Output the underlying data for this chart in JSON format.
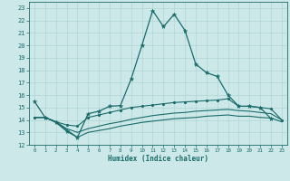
{
  "xlabel": "Humidex (Indice chaleur)",
  "x_ticks": [
    0,
    1,
    2,
    3,
    4,
    5,
    6,
    7,
    8,
    9,
    10,
    11,
    12,
    13,
    14,
    15,
    16,
    17,
    18,
    19,
    20,
    21,
    22,
    23
  ],
  "ylim": [
    12,
    23.5
  ],
  "xlim": [
    -0.5,
    23.5
  ],
  "yticks": [
    12,
    13,
    14,
    15,
    16,
    17,
    18,
    19,
    20,
    21,
    22,
    23
  ],
  "bg_color": "#cce8e8",
  "grid_color": "#b0d4d4",
  "line_color": "#1a6b6b",
  "line1_x": [
    0,
    1,
    2,
    3,
    4,
    5,
    6,
    7,
    8,
    9,
    10,
    11,
    12,
    13,
    14,
    15,
    16,
    17,
    18,
    19,
    20,
    21,
    22
  ],
  "line1_y": [
    15.5,
    14.2,
    13.8,
    13.1,
    12.6,
    14.5,
    14.7,
    15.1,
    15.15,
    17.3,
    20.0,
    22.8,
    21.5,
    22.5,
    21.2,
    18.5,
    17.8,
    17.5,
    16.0,
    15.1,
    15.1,
    15.0,
    14.1
  ],
  "line2_x": [
    0,
    1,
    2,
    3,
    4,
    5,
    6,
    7,
    8,
    9,
    10,
    11,
    12,
    13,
    14,
    15,
    16,
    17,
    18,
    19,
    20,
    21,
    22,
    23
  ],
  "line2_y": [
    14.2,
    14.2,
    13.85,
    13.6,
    13.5,
    14.2,
    14.4,
    14.6,
    14.8,
    15.0,
    15.1,
    15.2,
    15.3,
    15.4,
    15.45,
    15.5,
    15.55,
    15.6,
    15.7,
    15.1,
    15.1,
    15.0,
    14.9,
    14.0
  ],
  "line3_x": [
    0,
    1,
    2,
    3,
    4,
    5,
    6,
    7,
    8,
    9,
    10,
    11,
    12,
    13,
    14,
    15,
    16,
    17,
    18,
    19,
    20,
    21,
    22,
    23
  ],
  "line3_y": [
    14.2,
    14.2,
    13.85,
    13.3,
    13.0,
    13.3,
    13.5,
    13.7,
    13.85,
    14.05,
    14.2,
    14.35,
    14.45,
    14.55,
    14.6,
    14.7,
    14.75,
    14.8,
    14.85,
    14.75,
    14.7,
    14.6,
    14.5,
    14.0
  ],
  "line4_x": [
    0,
    1,
    2,
    3,
    4,
    5,
    6,
    7,
    8,
    9,
    10,
    11,
    12,
    13,
    14,
    15,
    16,
    17,
    18,
    19,
    20,
    21,
    22,
    23
  ],
  "line4_y": [
    14.2,
    14.2,
    13.85,
    13.2,
    12.6,
    13.0,
    13.15,
    13.3,
    13.5,
    13.65,
    13.8,
    13.9,
    14.0,
    14.1,
    14.15,
    14.2,
    14.3,
    14.35,
    14.4,
    14.3,
    14.3,
    14.2,
    14.15,
    13.85
  ]
}
